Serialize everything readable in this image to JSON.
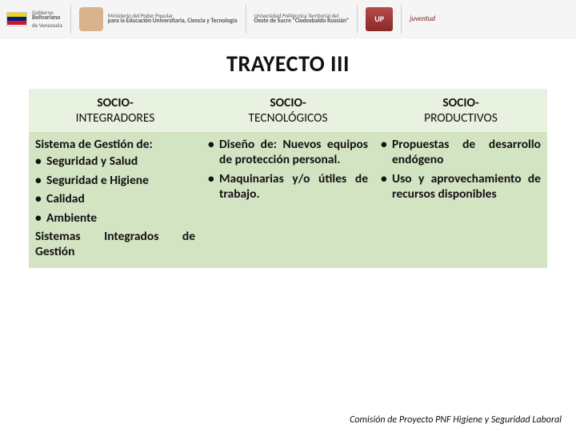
{
  "header": {
    "gov_l1": "Gobierno",
    "gov_l2": "Bolivariano",
    "gov_l3": "de Venezuela",
    "min_l1": "Ministerio del Poder Popular",
    "min_l2": "para la Educación Universitaria, Ciencia y Tecnología",
    "uni_l1": "Universidad Politécnica Territorial del",
    "uni_l2": "Oeste de Sucre \"Clodosbaldo Russián\"",
    "up": "UP",
    "juv": "juventud"
  },
  "title": "TRAYECTO III",
  "table": {
    "header_row_bg": "#e9f2e1",
    "body_row_bg": "#d3e4c3",
    "columns": [
      {
        "l1": "SOCIO-",
        "l2": "INTEGRADORES"
      },
      {
        "l1": "SOCIO-",
        "l2": "TECNOLÓGICOS"
      },
      {
        "l1": "SOCIO-",
        "l2": "PRODUCTIVOS"
      }
    ],
    "col1": {
      "lead": "Sistema de Gestión de:",
      "items": [
        "Seguridad y Salud",
        "Seguridad e Higiene",
        "Calidad",
        "Ambiente"
      ],
      "tail": "Sistemas Integrados de Gestión"
    },
    "col2": {
      "items": [
        "Diseño de: Nuevos equipos de protección personal.",
        "Maquinarias y/o útiles de trabajo."
      ]
    },
    "col3": {
      "items": [
        "Propuestas de desarrollo endógeno",
        "Uso y aprovechamiento de recursos disponibles"
      ]
    }
  },
  "footer": "Comisión de Proyecto PNF Higiene y Seguridad Laboral"
}
